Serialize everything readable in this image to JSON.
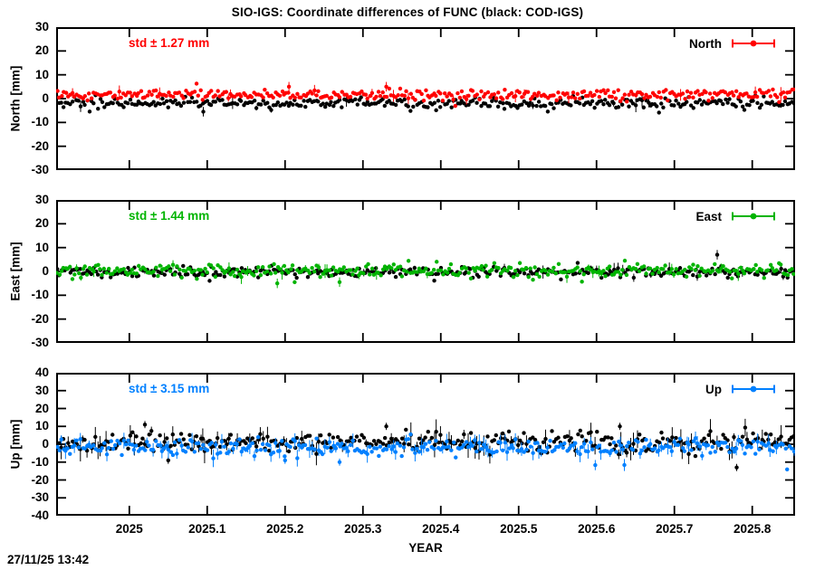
{
  "title": "SIO-IGS: Coordinate differences of FUNC (black: COD-IGS)",
  "timestamp": "27/11/25 13:42",
  "x_axis": {
    "label": "YEAR",
    "min": 2024.906,
    "max": 2025.855,
    "tick_values": [
      2025,
      2025.1,
      2025.2,
      2025.3,
      2025.4,
      2025.5,
      2025.6,
      2025.7,
      2025.8
    ],
    "tick_labels": [
      "2025",
      "2025.1",
      "2025.2",
      "2025.3",
      "2025.4",
      "2025.5",
      "2025.6",
      "2025.7",
      "2025.8"
    ]
  },
  "chart_data": [
    {
      "panel": "North",
      "type": "scatter",
      "y_label": "North [mm]",
      "y_min": -30,
      "y_max": 30,
      "y_tick_values": [
        30,
        20,
        10,
        0,
        -10,
        -20,
        -30
      ],
      "y_tick_labels": [
        "30",
        "20",
        "10",
        "0",
        "-10",
        "-20",
        "-30"
      ],
      "std_label": "std ± 1.27 mm",
      "std_value_mm": 1.27,
      "legend_label": "North",
      "accent_color": "#ff0000",
      "seed": 7,
      "series": [
        {
          "name": "COD-IGS",
          "color": "#000000",
          "center_mm": -1.9,
          "scatter_mm": 1.1,
          "points": 345,
          "error_bar_prob": 0.05,
          "error_bar_half_mm": [
            1,
            3
          ],
          "outliers": [
            {
              "x": 2025.095,
              "y": -5.5
            }
          ]
        },
        {
          "name": "SIO-IGS",
          "color": "#ff0000",
          "center_mm": 1.7,
          "scatter_mm": 1.1,
          "points": 345,
          "error_bar_prob": 0.05,
          "error_bar_half_mm": [
            1,
            3
          ],
          "outliers": [
            {
              "x": 2025.205,
              "y": 5.0
            },
            {
              "x": 2025.33,
              "y": 5.0
            }
          ]
        }
      ]
    },
    {
      "panel": "East",
      "type": "scatter",
      "y_label": "East [mm]",
      "y_min": -30,
      "y_max": 30,
      "y_tick_values": [
        30,
        20,
        10,
        0,
        -10,
        -20,
        -30
      ],
      "y_tick_labels": [
        "30",
        "20",
        "10",
        "0",
        "-10",
        "-20",
        "-30"
      ],
      "std_label": "std ± 1.44 mm",
      "std_value_mm": 1.44,
      "legend_label": "East",
      "accent_color": "#00b400",
      "seed": 13,
      "series": [
        {
          "name": "COD-IGS",
          "color": "#000000",
          "center_mm": -0.3,
          "scatter_mm": 1.0,
          "points": 345,
          "error_bar_prob": 0.05,
          "error_bar_half_mm": [
            1,
            3
          ],
          "outliers": [
            {
              "x": 2025.755,
              "y": 7.0
            }
          ]
        },
        {
          "name": "SIO-IGS",
          "color": "#00b400",
          "center_mm": 0.3,
          "scatter_mm": 1.4,
          "points": 345,
          "error_bar_prob": 0.06,
          "error_bar_half_mm": [
            1,
            3
          ],
          "outliers": [
            {
              "x": 2025.19,
              "y": -5.0
            },
            {
              "x": 2025.27,
              "y": -4.5
            }
          ]
        }
      ]
    },
    {
      "panel": "Up",
      "type": "scatter",
      "y_label": "Up [mm]",
      "y_min": -40,
      "y_max": 40,
      "y_tick_values": [
        40,
        30,
        20,
        10,
        0,
        -10,
        -20,
        -30,
        -40
      ],
      "y_tick_labels": [
        "40",
        "30",
        "20",
        "10",
        "0",
        "-10",
        "-20",
        "-30",
        "-40"
      ],
      "std_label": "std ± 3.15 mm",
      "std_value_mm": 3.15,
      "legend_label": "Up",
      "accent_color": "#0080ff",
      "seed": 21,
      "series": [
        {
          "name": "COD-IGS",
          "color": "#000000",
          "center_mm": 1.5,
          "scatter_mm": 3.0,
          "points": 345,
          "error_bar_prob": 0.35,
          "error_bar_half_mm": [
            2,
            7
          ],
          "outliers": [
            {
              "x": 2025.02,
              "y": 11
            },
            {
              "x": 2025.33,
              "y": 10
            },
            {
              "x": 2025.63,
              "y": 10
            },
            {
              "x": 2025.78,
              "y": -13
            },
            {
              "x": 2025.05,
              "y": -9
            }
          ]
        },
        {
          "name": "SIO-IGS",
          "color": "#0080ff",
          "center_mm": -1.5,
          "scatter_mm": 2.3,
          "points": 345,
          "error_bar_prob": 0.25,
          "error_bar_half_mm": [
            2,
            5
          ],
          "outliers": [
            {
              "x": 2025.2,
              "y": -9
            },
            {
              "x": 2025.27,
              "y": -10
            }
          ]
        }
      ]
    }
  ]
}
